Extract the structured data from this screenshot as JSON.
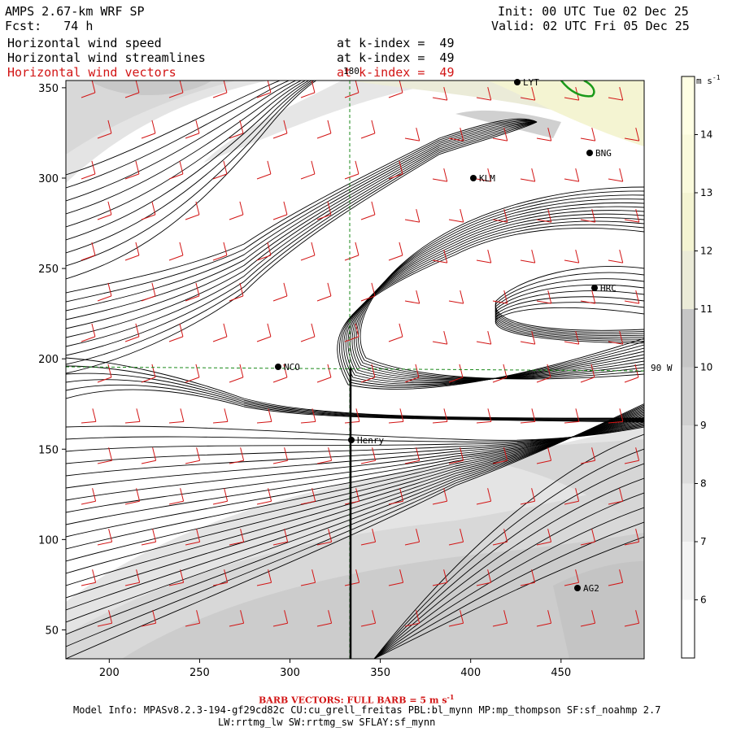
{
  "header": {
    "model": "AMPS 2.67-km WRF SP",
    "fcst": "Fcst:   74 h",
    "init": "Init: 00 UTC Tue 02 Dec 25",
    "valid": "Valid: 02 UTC Fri 05 Dec 25",
    "fields": [
      {
        "label": "Horizontal wind speed",
        "level": "at k-index =  49",
        "color": "#000000"
      },
      {
        "label": "Horizontal wind streamlines",
        "level": "at k-index =  49",
        "color": "#000000"
      },
      {
        "label": "Horizontal wind vectors",
        "level": "at k-index =  49",
        "color": "#d21414"
      }
    ]
  },
  "map": {
    "x_ticks": [
      "200",
      "250",
      "300",
      "350",
      "400",
      "450"
    ],
    "y_ticks": [
      "50",
      "100",
      "150",
      "200",
      "250",
      "300",
      "350"
    ],
    "grid_labels": {
      "meridian": "180",
      "parallel": "90 W"
    },
    "stations": [
      {
        "name": "LYT"
      },
      {
        "name": "BNG"
      },
      {
        "name": "KLM"
      },
      {
        "name": "HRC"
      },
      {
        "name": "NCO"
      },
      {
        "name": "Henry"
      },
      {
        "name": "AG2"
      }
    ]
  },
  "colorbar": {
    "unit": "m s",
    "unit_exp": "-1",
    "ticks": [
      "6",
      "7",
      "8",
      "9",
      "10",
      "11",
      "12",
      "13",
      "14"
    ],
    "colors": [
      "#ffffff",
      "#f4f4f4",
      "#e8e8e8",
      "#dcdcdc",
      "#d0d0d0",
      "#c6c6c6",
      "#ebebd8",
      "#f4f4d2",
      "#fafadc",
      "#ffffe4"
    ]
  },
  "footer": {
    "barb": "BARB VECTORS:  FULL BARB = 5 m s",
    "barb_exp": "-1",
    "model_info_1": "Model Info: MPASv8.2.3-194-gf29cd82c CU:cu_grell_freitas PBL:bl_mynn MP:mp_thompson SF:sf_noahmp 2.7",
    "model_info_2": "LW:rrtmg_lw SW:rrtmg_sw SFLAY:sf_mynn"
  }
}
